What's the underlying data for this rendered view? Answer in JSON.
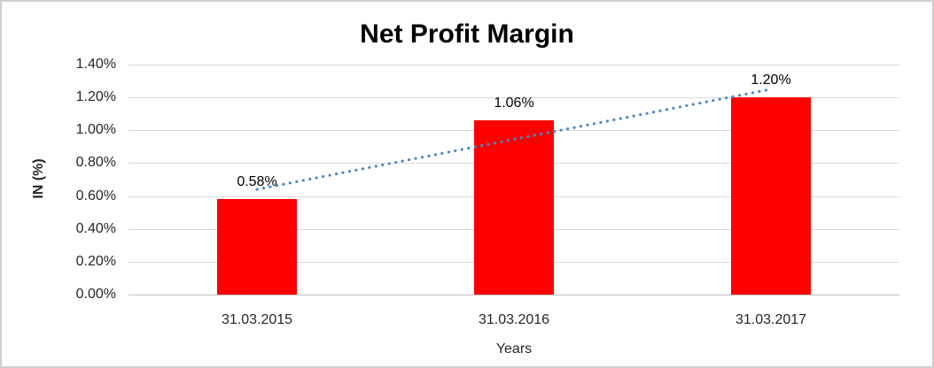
{
  "chart_data": {
    "type": "bar",
    "title": "Net Profit Margin",
    "xlabel": "Years",
    "ylabel": "IN (%)",
    "categories": [
      "31.03.2015",
      "31.03.2016",
      "31.03.2017"
    ],
    "values": [
      0.58,
      1.06,
      1.2
    ],
    "data_labels": [
      "0.58%",
      "1.06%",
      "1.20%"
    ],
    "yticks": [
      0,
      0.2,
      0.4,
      0.6,
      0.8,
      1.0,
      1.2,
      1.4
    ],
    "ytick_labels": [
      "0.00%",
      "0.20%",
      "0.40%",
      "0.60%",
      "0.80%",
      "1.00%",
      "1.20%",
      "1.40%"
    ],
    "ylim": [
      0,
      1.4
    ],
    "grid": "horizontal",
    "legend": "none",
    "bar_color": "#ff0000",
    "gridline_color": "#d9d9d9",
    "axis_color": "#bfbfbf",
    "trendline": {
      "type": "linear",
      "style": "dotted",
      "color": "#4a87c7",
      "y_start": 0.64,
      "y_end": 1.25
    }
  }
}
